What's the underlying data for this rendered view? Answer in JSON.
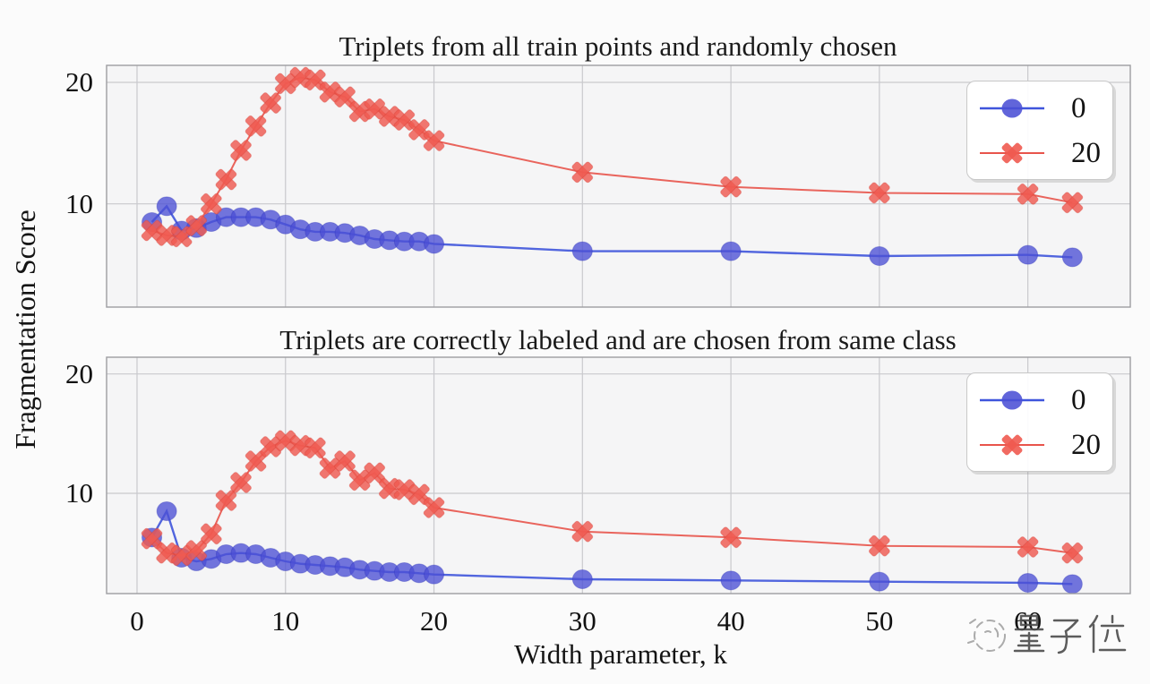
{
  "figure": {
    "ylabel": "Fragmentation Score",
    "xlabel": "Width parameter, k",
    "watermark": {
      "text": "量子位",
      "icon": "sketch-circle-logo"
    }
  },
  "style": {
    "plot_bg": "#f5f5f6",
    "grid_color": "#c9c9cd",
    "spine_color": "#9d9da1",
    "blue_marker": "#4b50d5",
    "blue_line": "#3f55dc",
    "red_marker": "#ef5a50",
    "red_line": "#e8544b"
  },
  "chart_data": [
    {
      "type": "line",
      "title": "Triplets from all train points and randomly chosen",
      "xlabel": "",
      "ylabel": "Fragmentation Score",
      "xlim": [
        -2.05,
        66.9
      ],
      "ylim": [
        1.5,
        21.4
      ],
      "xticks": [
        0,
        10,
        20,
        30,
        40,
        50,
        60
      ],
      "yticks": [
        10,
        20
      ],
      "show_xticklabels": false,
      "grid": true,
      "legend_position": "upper right",
      "x": [
        1,
        2,
        3,
        4,
        5,
        6,
        7,
        8,
        9,
        10,
        11,
        12,
        13,
        14,
        15,
        16,
        17,
        18,
        19,
        20,
        30,
        40,
        50,
        60,
        63
      ],
      "series": [
        {
          "name": "0",
          "marker": "circle",
          "marker_color": "#4b50d5",
          "line_color": "#3f55dc",
          "values": [
            8.5,
            9.8,
            7.8,
            8.0,
            8.5,
            8.9,
            8.9,
            8.9,
            8.7,
            8.3,
            7.9,
            7.7,
            7.7,
            7.6,
            7.4,
            7.1,
            7.0,
            6.9,
            6.9,
            6.7,
            6.1,
            6.1,
            5.7,
            5.8,
            5.6
          ]
        },
        {
          "name": "20",
          "marker": "X",
          "marker_color": "#ef5a50",
          "line_color": "#e8544b",
          "values": [
            7.8,
            7.4,
            7.3,
            8.2,
            10.0,
            12.0,
            14.4,
            16.4,
            18.3,
            19.9,
            20.4,
            20.2,
            19.2,
            18.8,
            17.6,
            17.8,
            17.2,
            16.9,
            16.1,
            15.2,
            12.6,
            11.4,
            10.9,
            10.8,
            10.1
          ]
        }
      ]
    },
    {
      "type": "line",
      "title": "Triplets are correctly labeled and are chosen from same class",
      "xlabel": "Width parameter, k",
      "ylabel": "Fragmentation Score",
      "xlim": [
        -2.05,
        66.9
      ],
      "ylim": [
        1.6,
        21.4
      ],
      "xticks": [
        0,
        10,
        20,
        30,
        40,
        50,
        60
      ],
      "yticks": [
        10,
        20
      ],
      "show_xticklabels": true,
      "grid": true,
      "legend_position": "upper right",
      "x": [
        1,
        2,
        3,
        4,
        5,
        6,
        7,
        8,
        9,
        10,
        11,
        12,
        13,
        14,
        15,
        16,
        17,
        18,
        19,
        20,
        30,
        40,
        50,
        60,
        63
      ],
      "series": [
        {
          "name": "0",
          "marker": "circle",
          "marker_color": "#4b50d5",
          "line_color": "#3f55dc",
          "values": [
            6.3,
            8.5,
            4.6,
            4.3,
            4.5,
            4.9,
            5.0,
            4.9,
            4.6,
            4.3,
            4.1,
            4.0,
            3.9,
            3.8,
            3.6,
            3.5,
            3.4,
            3.4,
            3.3,
            3.2,
            2.8,
            2.7,
            2.6,
            2.5,
            2.4
          ]
        },
        {
          "name": "20",
          "marker": "X",
          "marker_color": "#ef5a50",
          "line_color": "#e8544b",
          "values": [
            6.2,
            5.0,
            4.8,
            5.2,
            6.6,
            9.4,
            10.9,
            12.7,
            13.9,
            14.4,
            14.0,
            13.8,
            12.1,
            12.7,
            11.1,
            11.7,
            10.4,
            10.3,
            9.9,
            8.8,
            6.8,
            6.3,
            5.6,
            5.5,
            5.0
          ]
        }
      ]
    }
  ]
}
